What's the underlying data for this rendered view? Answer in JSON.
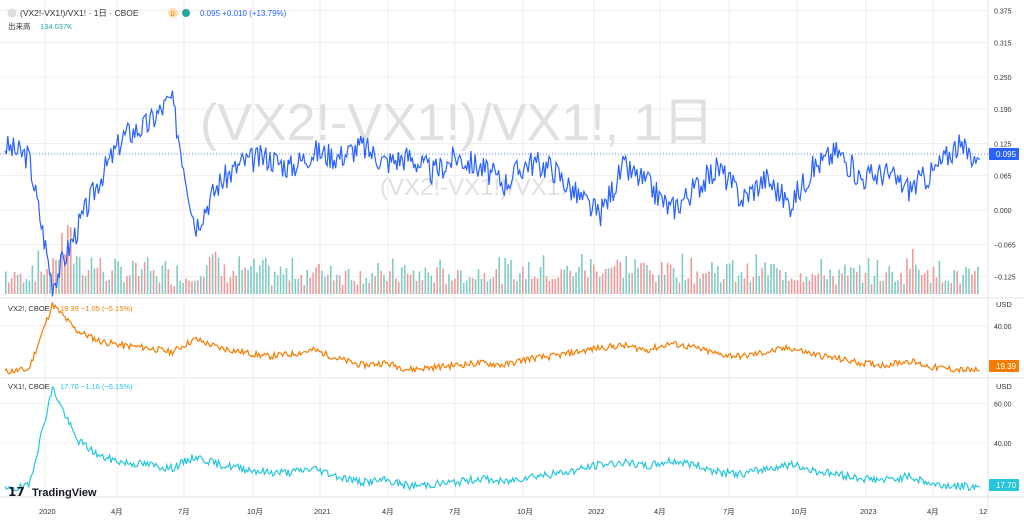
{
  "header": {
    "symbol": "(VX2!-VX1!)/VX1! · 1日 · CBOE",
    "mode_badge": "D",
    "price_change": "0.095 +0.010 (+13.79%)",
    "volume_label": "出来高",
    "volume_value": "134.037K"
  },
  "watermark": {
    "main": "(VX2!-VX1!)/VX1!, 1日",
    "sub": "(VX2!-VX1!)/VX1!"
  },
  "panes": {
    "vx2": {
      "legend_name": "VX2!, CBOE",
      "legend_values": "19.39 −1.05 (−5.15%)",
      "currency": "USD",
      "last": "19.39"
    },
    "vx1": {
      "legend_name": "VX1!, CBOE",
      "legend_values": "17.70 −1.16 (−6.15%)",
      "currency": "USD",
      "last": "17.70"
    }
  },
  "brand": {
    "logo_text": "TradingView"
  },
  "colors": {
    "spread": "#2962ff",
    "vx2": "#f57c00",
    "vx1": "#26c6da",
    "vol_up": "#80cbc4",
    "vol_down": "#ef9a9a",
    "grid": "#eeeeee"
  },
  "chart_data": [
    {
      "type": "line",
      "title": "(VX2!-VX1!)/VX1!",
      "last_value": 0.095,
      "y_ticks": [
        0.375,
        0.315,
        0.25,
        0.19,
        0.125,
        0.065,
        0.0,
        -0.065,
        -0.125
      ],
      "x_ticks": [
        "2020",
        "4月",
        "7月",
        "10月",
        "2021",
        "4月",
        "7月",
        "10月",
        "2022",
        "4月",
        "7月",
        "10月",
        "2023",
        "4月",
        "12"
      ],
      "ylim": [
        -0.16,
        0.38
      ],
      "x": [
        "2020-01",
        "2020-02",
        "2020-03",
        "2020-04",
        "2020-05",
        "2020-06",
        "2020-07",
        "2020-08",
        "2020-09",
        "2020-10",
        "2020-11",
        "2020-12",
        "2021-01",
        "2021-02",
        "2021-03",
        "2021-04",
        "2021-05",
        "2021-06",
        "2021-07",
        "2021-08",
        "2021-09",
        "2021-10",
        "2021-11",
        "2021-12",
        "2022-01",
        "2022-02",
        "2022-03",
        "2022-04",
        "2022-05",
        "2022-06",
        "2022-07",
        "2022-08",
        "2022-09",
        "2022-10",
        "2022-11",
        "2022-12",
        "2023-01",
        "2023-02",
        "2023-03",
        "2023-04",
        "2023-05",
        "2023-06"
      ],
      "values": [
        0.12,
        0.1,
        -0.14,
        -0.04,
        0.06,
        0.14,
        0.16,
        0.21,
        -0.03,
        0.05,
        0.09,
        0.1,
        0.08,
        0.11,
        0.1,
        0.12,
        0.09,
        0.1,
        0.07,
        0.1,
        0.08,
        0.05,
        0.09,
        0.08,
        0.03,
        -0.01,
        0.08,
        0.05,
        0.0,
        0.04,
        0.08,
        0.02,
        0.06,
        0.01,
        0.08,
        0.11,
        0.06,
        0.07,
        0.04,
        0.07,
        0.12,
        0.095
      ],
      "volume_up": [
        40,
        55,
        80,
        60,
        45,
        50,
        45,
        40,
        60,
        50,
        45,
        40,
        45,
        50,
        45,
        40,
        45,
        40,
        45,
        40,
        50,
        45,
        50,
        45,
        55,
        60,
        55,
        50,
        55,
        50,
        45,
        50,
        45,
        50,
        45,
        40,
        45,
        40,
        55,
        45,
        40,
        35
      ],
      "volume_down": [
        30,
        45,
        90,
        50,
        35,
        40,
        35,
        30,
        55,
        40,
        35,
        30,
        35,
        40,
        35,
        30,
        35,
        30,
        35,
        30,
        40,
        35,
        40,
        35,
        45,
        50,
        45,
        40,
        45,
        40,
        35,
        40,
        35,
        40,
        35,
        30,
        35,
        30,
        60,
        35,
        30,
        25
      ]
    },
    {
      "type": "line",
      "title": "VX2!",
      "y_ticks": [
        40.0
      ],
      "ylim": [
        17,
        52
      ],
      "x": [
        "2020-01",
        "2020-02",
        "2020-03",
        "2020-04",
        "2020-05",
        "2020-06",
        "2020-07",
        "2020-08",
        "2020-09",
        "2020-10",
        "2020-11",
        "2020-12",
        "2021-01",
        "2021-02",
        "2021-03",
        "2021-04",
        "2021-05",
        "2021-06",
        "2021-07",
        "2021-08",
        "2021-09",
        "2021-10",
        "2021-11",
        "2021-12",
        "2022-01",
        "2022-02",
        "2022-03",
        "2022-04",
        "2022-05",
        "2022-06",
        "2022-07",
        "2022-08",
        "2022-09",
        "2022-10",
        "2022-11",
        "2022-12",
        "2023-01",
        "2023-02",
        "2023-03",
        "2023-04",
        "2023-05",
        "2023-06"
      ],
      "values": [
        19,
        20,
        50,
        38,
        33,
        31,
        30,
        28,
        34,
        30,
        28,
        26,
        27,
        29,
        25,
        22,
        23,
        20,
        21,
        22,
        23,
        22,
        25,
        26,
        28,
        30,
        31,
        29,
        32,
        30,
        27,
        26,
        28,
        30,
        27,
        25,
        23,
        22,
        24,
        21,
        20,
        19.39
      ]
    },
    {
      "type": "line",
      "title": "VX1!",
      "y_ticks": [
        60.0,
        40.0
      ],
      "ylim": [
        14,
        72
      ],
      "x": [
        "2020-01",
        "2020-02",
        "2020-03",
        "2020-04",
        "2020-05",
        "2020-06",
        "2020-07",
        "2020-08",
        "2020-09",
        "2020-10",
        "2020-11",
        "2020-12",
        "2021-01",
        "2021-02",
        "2021-03",
        "2021-04",
        "2021-05",
        "2021-06",
        "2021-07",
        "2021-08",
        "2021-09",
        "2021-10",
        "2021-11",
        "2021-12",
        "2022-01",
        "2022-02",
        "2022-03",
        "2022-04",
        "2022-05",
        "2022-06",
        "2022-07",
        "2022-08",
        "2022-09",
        "2022-10",
        "2022-11",
        "2022-12",
        "2023-01",
        "2023-02",
        "2023-03",
        "2023-04",
        "2023-05",
        "2023-06"
      ],
      "values": [
        16,
        18,
        68,
        42,
        33,
        30,
        29,
        27,
        33,
        29,
        27,
        25,
        25,
        27,
        23,
        20,
        21,
        18,
        19,
        20,
        22,
        20,
        23,
        24,
        26,
        29,
        30,
        28,
        31,
        29,
        25,
        24,
        27,
        29,
        26,
        24,
        22,
        21,
        23,
        19,
        18,
        17.7
      ]
    }
  ]
}
